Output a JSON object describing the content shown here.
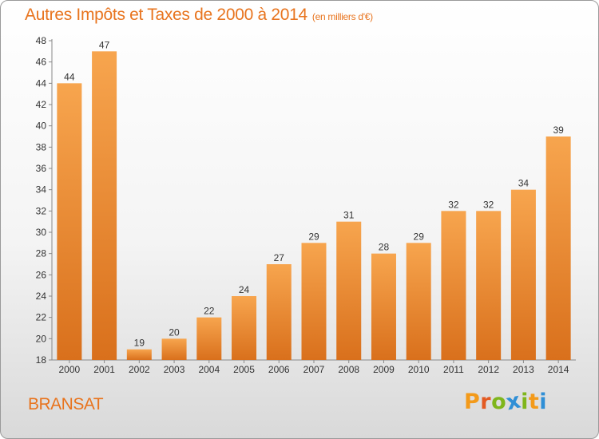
{
  "header": {
    "title": "Autres Impôts et Taxes de 2000 à 2014",
    "unit": "(en milliers d'€)"
  },
  "footer": {
    "location": "BRANSAT",
    "logo": "Proxiti"
  },
  "colors": {
    "accent": "#e8741e",
    "bar_top": "#f7a54e",
    "bar_bottom": "#d9701c",
    "logo_letters": [
      "#f39a1a",
      "#e35a22",
      "#7fb61c",
      "#2f8fd6",
      "#7fb61c",
      "#f39a1a",
      "#2f8fd6"
    ]
  },
  "chart_data": {
    "type": "bar",
    "title": "Autres Impôts et Taxes de 2000 à 2014",
    "subtitle": "(en milliers d'€)",
    "xlabel": "",
    "ylabel": "",
    "categories": [
      "2000",
      "2001",
      "2002",
      "2003",
      "2004",
      "2005",
      "2006",
      "2007",
      "2008",
      "2009",
      "2010",
      "2011",
      "2012",
      "2013",
      "2014"
    ],
    "values": [
      44,
      47,
      19,
      20,
      22,
      24,
      27,
      29,
      31,
      28,
      29,
      32,
      32,
      34,
      39
    ],
    "ylim": [
      18,
      48
    ],
    "yticks": [
      18,
      20,
      22,
      24,
      26,
      28,
      30,
      32,
      34,
      36,
      38,
      40,
      42,
      44,
      46,
      48
    ],
    "grid": false,
    "legend": "none"
  }
}
